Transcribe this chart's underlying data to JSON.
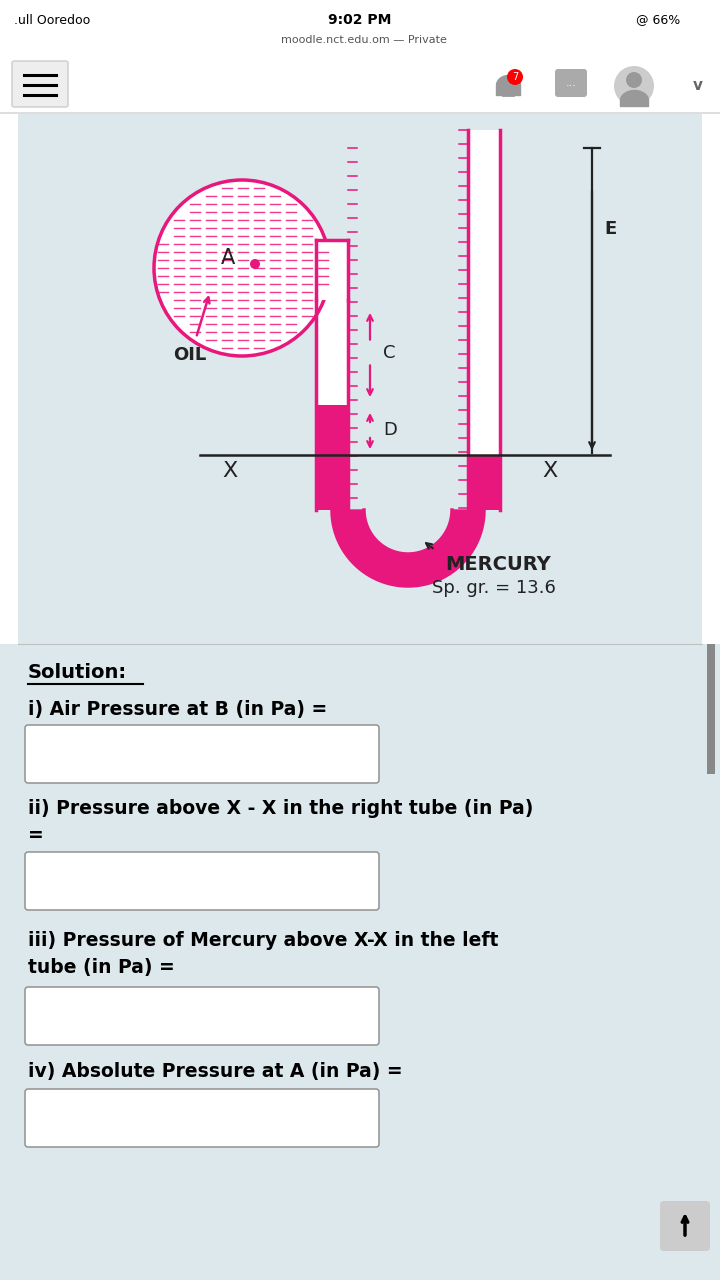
{
  "bg_color": "#dce8ec",
  "white_bg": "#ffffff",
  "pink": "#e8177d",
  "dark_gray": "#222222",
  "status_bar": "9:02 PM",
  "carrier": ".ull Ooredoo",
  "url": "moodle.nct.edu.om — Private",
  "battery": "66%",
  "solution_label": "Solution:",
  "q1": "i) Air Pressure at B (in Pa) =",
  "q2_line1": "ii) Pressure above X - X in the right tube (in Pa)",
  "q2_line2": "=",
  "q3_line1": "iii) Pressure of Mercury above X-X in the left",
  "q3_line2": "tube (in Pa) =",
  "q4": "iv) Absolute Pressure at A (in Pa) =",
  "mercury_label": "MERCURY",
  "sp_gr_label": "Sp. gr. = 13.6",
  "oil_label": "OIL",
  "label_A": "A",
  "label_C": "C",
  "label_D": "D",
  "label_E": "E",
  "label_X1": "X",
  "label_X2": "X"
}
